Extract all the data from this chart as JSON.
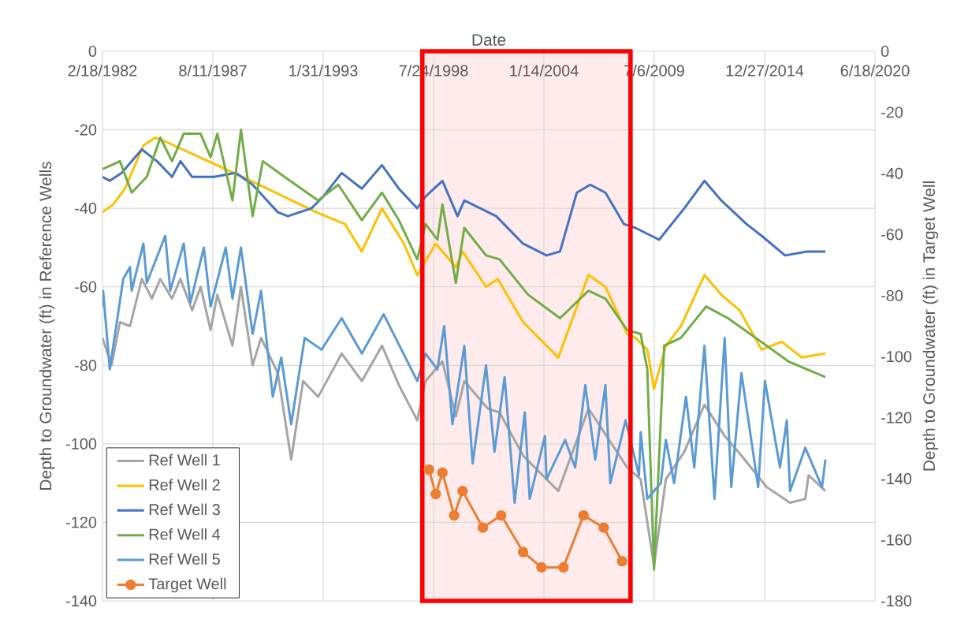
{
  "chart_data": {
    "type": "line",
    "xlabel": "Date",
    "ylabel": "Depth to Groundwater (ft) in Reference Wells",
    "y2label": "Depth to Groundwater (ft) in Target Well",
    "xlim": [
      "1982-02-18",
      "2020-06-18"
    ],
    "xticks": [
      {
        "value": "1982-02-18",
        "label": "2/18/1982"
      },
      {
        "value": "1987-08-11",
        "label": "8/11/1987"
      },
      {
        "value": "1993-01-31",
        "label": "1/31/1993"
      },
      {
        "value": "1998-07-24",
        "label": "7/24/1998"
      },
      {
        "value": "2004-01-14",
        "label": "1/14/2004"
      },
      {
        "value": "2009-07-06",
        "label": "7/6/2009"
      },
      {
        "value": "2014-12-27",
        "label": "12/27/2014"
      },
      {
        "value": "2020-06-18",
        "label": "6/18/2020"
      }
    ],
    "ylim": [
      -140,
      0
    ],
    "yticks": [
      -140,
      -120,
      -100,
      -80,
      -60,
      -40,
      -20,
      0
    ],
    "y2lim": [
      -180,
      0
    ],
    "y2ticks": [
      -180,
      -160,
      -140,
      -120,
      -100,
      -80,
      -60,
      -40,
      -20,
      0
    ],
    "grid": true,
    "legend": "bottom left",
    "bands": [
      {
        "axis": "x",
        "from": "1998-01",
        "to": "2008-05"
      }
    ],
    "series": [
      {
        "name": "Ref Well 1",
        "color": "#a5a5a5",
        "x": [
          "1982-02-18",
          "1982-08",
          "1983-01",
          "1983-07",
          "1984-02",
          "1984-08",
          "1985-01",
          "1985-08",
          "1986-01",
          "1986-08",
          "1987-01",
          "1987-07",
          "1987-11",
          "1988-08",
          "1989-01",
          "1989-08",
          "1990-01",
          "1990-11",
          "1991-07",
          "1992-02",
          "1992-11",
          "1994-01",
          "1995-01",
          "1996-01",
          "1996-11",
          "1997-10",
          "1998-03",
          "1999-01",
          "1999-09",
          "2000-02",
          "2001-04",
          "2001-11",
          "2003-01",
          "2004-10",
          "2006-04",
          "2008-03",
          "2008-11",
          "2009-07",
          "2010-02",
          "2011-01",
          "2012-01",
          "2013-01",
          "2013-11",
          "2015-02",
          "2016-04",
          "2017-01",
          "2017-03",
          "2018-01"
        ],
        "values": [
          -73,
          -80,
          -69,
          -70,
          -58,
          -63,
          -58,
          -63,
          -58,
          -66,
          -60,
          -71,
          -62,
          -75,
          -60,
          -80,
          -73,
          -82,
          -104,
          -84,
          -88,
          -77,
          -84,
          -75,
          -85,
          -94,
          -84,
          -79,
          -93,
          -84,
          -91,
          -92,
          -103,
          -112,
          -91,
          -106,
          -109,
          -131,
          -109,
          -102,
          -90,
          -98,
          -103,
          -111,
          -115,
          -114,
          -108,
          -112
        ]
      },
      {
        "name": "Ref Well 2",
        "color": "#ffc000",
        "x": [
          "1982-02-18",
          "1982-09",
          "1983-04",
          "1984-03",
          "1984-10",
          "1985-04",
          "1989-02",
          "1992-10",
          "1994-03",
          "1995-01",
          "1996-01",
          "1997-02",
          "1997-10",
          "1998-09",
          "1999-09",
          "2000-01",
          "2001-03",
          "2001-10",
          "2003-01",
          "2004-10",
          "2006-04",
          "2007-02",
          "2008-03",
          "2008-08",
          "2009-03",
          "2009-07",
          "2010-02",
          "2010-11",
          "2012-01",
          "2012-11",
          "2013-10",
          "2014-11",
          "2015-11",
          "2016-11",
          "2018-01"
        ],
        "values": [
          -41,
          -39,
          -35,
          -24,
          -22,
          -23,
          -32,
          -41,
          -44,
          -51,
          -40,
          -49,
          -57,
          -49,
          -55,
          -51,
          -60,
          -58,
          -69,
          -78,
          -57,
          -60,
          -72,
          -73,
          -76,
          -86,
          -75,
          -70,
          -57,
          -62,
          -66,
          -76,
          -74,
          -78,
          -77
        ]
      },
      {
        "name": "Ref Well 3",
        "color": "#4472c4",
        "x": [
          "1982-02-18",
          "1982-07",
          "1983-02",
          "1984-02",
          "1984-11",
          "1985-08",
          "1986-01",
          "1986-08",
          "1987-09",
          "1988-10",
          "1989-08",
          "1990-11",
          "1991-05",
          "1992-07",
          "1993-02",
          "1994-01",
          "1995-01",
          "1996-01",
          "1996-11",
          "1997-10",
          "1998-03",
          "1999-01",
          "1999-10",
          "2000-02",
          "2001-09",
          "2003-01",
          "2004-03",
          "2004-11",
          "2005-09",
          "2006-05",
          "2007-02",
          "2008-01",
          "2008-08",
          "2009-10",
          "2011-01",
          "2012-01",
          "2012-11",
          "2014-02",
          "2014-11",
          "2016-01",
          "2017-02",
          "2018-01"
        ],
        "values": [
          -32,
          -33,
          -31,
          -25,
          -28,
          -32,
          -28,
          -32,
          -32,
          -31,
          -34,
          -41,
          -42,
          -40,
          -37,
          -31,
          -35,
          -29,
          -35,
          -40,
          -37,
          -33,
          -42,
          -38,
          -42,
          -49,
          -52,
          -51,
          -36,
          -34,
          -36,
          -44,
          -45,
          -48,
          -40,
          -33,
          -38,
          -44,
          -47,
          -52,
          -51,
          -51
        ]
      },
      {
        "name": "Ref Well 4",
        "color": "#70ad47",
        "x": [
          "1982-02-18",
          "1982-08",
          "1983-01",
          "1983-08",
          "1984-05",
          "1985-01",
          "1985-08",
          "1986-03",
          "1987-01",
          "1987-07",
          "1987-11",
          "1988-08",
          "1989-01",
          "1989-08",
          "1990-02",
          "1991-03",
          "1992-11",
          "1993-11",
          "1995-01",
          "1996-01",
          "1996-11",
          "1997-10",
          "1998-03",
          "1998-10",
          "1999-01",
          "1999-09",
          "2000-02",
          "2001-03",
          "2001-11",
          "2003-04",
          "2004-11",
          "2006-04",
          "2007-02",
          "2008-03",
          "2008-11",
          "2009-03",
          "2009-07",
          "2010-01",
          "2010-11",
          "2012-02",
          "2013-03",
          "2015-02",
          "2016-03",
          "2018-01"
        ],
        "values": [
          -30,
          -29,
          -28,
          -36,
          -32,
          -22,
          -28,
          -21,
          -21,
          -27,
          -21,
          -38,
          -20,
          -42,
          -28,
          -32,
          -38,
          -34,
          -43,
          -36,
          -43,
          -53,
          -44,
          -48,
          -39,
          -59,
          -45,
          -52,
          -53,
          -62,
          -68,
          -61,
          -63,
          -71,
          -72,
          -81,
          -132,
          -75,
          -73,
          -65,
          -68,
          -75,
          -79,
          -83
        ]
      },
      {
        "name": "Ref Well 5",
        "color": "#5b9bd5",
        "x": [
          "1982-02-18",
          "1982-03",
          "1982-07",
          "1983-03",
          "1983-07",
          "1983-08",
          "1984-03",
          "1984-05",
          "1985-04",
          "1985-07",
          "1986-03",
          "1986-07",
          "1987-03",
          "1987-07",
          "1988-04",
          "1988-08",
          "1989-01",
          "1989-08",
          "1990-01",
          "1990-08",
          "1991-01",
          "1991-07",
          "1992-03",
          "1993-01",
          "1994-01",
          "1995-01",
          "1996-02",
          "1997-10",
          "1998-03",
          "1998-10",
          "1999-02",
          "1999-07",
          "2000-02",
          "2000-07",
          "2001-03",
          "2001-08",
          "2002-02",
          "2002-08",
          "2003-02",
          "2003-05",
          "2004-02",
          "2004-03",
          "2005-02",
          "2005-08",
          "2006-02",
          "2006-08",
          "2007-02",
          "2007-05",
          "2008-02",
          "2008-10",
          "2008-11",
          "2009-03",
          "2009-11",
          "2010-02",
          "2010-07",
          "2011-02",
          "2011-07",
          "2012-01",
          "2012-07",
          "2013-01",
          "2013-05",
          "2013-11",
          "2014-09",
          "2015-01",
          "2015-10",
          "2016-02",
          "2016-04",
          "2017-01",
          "2017-11",
          "2018-01"
        ],
        "values": [
          -65,
          -61,
          -81,
          -58,
          -55,
          -61,
          -49,
          -59,
          -47,
          -61,
          -49,
          -64,
          -50,
          -65,
          -50,
          -63,
          -50,
          -72,
          -61,
          -88,
          -78,
          -95,
          -73,
          -76,
          -68,
          -77,
          -67,
          -84,
          -77,
          -81,
          -70,
          -95,
          -75,
          -105,
          -80,
          -102,
          -83,
          -115,
          -92,
          -114,
          -98,
          -109,
          -99,
          -106,
          -85,
          -104,
          -85,
          -110,
          -94,
          -108,
          -97,
          -114,
          -110,
          -99,
          -110,
          -88,
          -106,
          -75,
          -114,
          -73,
          -111,
          -82,
          -111,
          -84,
          -106,
          -94,
          -112,
          -101,
          -111,
          -104
        ]
      },
      {
        "name": "Target Well",
        "color": "#ed7d31",
        "axis": "y2",
        "marker": "circle",
        "x": [
          "1998-05",
          "1998-09",
          "1999-01",
          "1999-08",
          "2000-01",
          "2001-01",
          "2001-12",
          "2003-01",
          "2003-12",
          "2005-01",
          "2006-01",
          "2007-01",
          "2007-12"
        ],
        "values": [
          -137,
          -145,
          -138,
          -152,
          -144,
          -156,
          -152,
          -164,
          -169,
          -169,
          -152,
          -156,
          -167
        ]
      }
    ]
  }
}
